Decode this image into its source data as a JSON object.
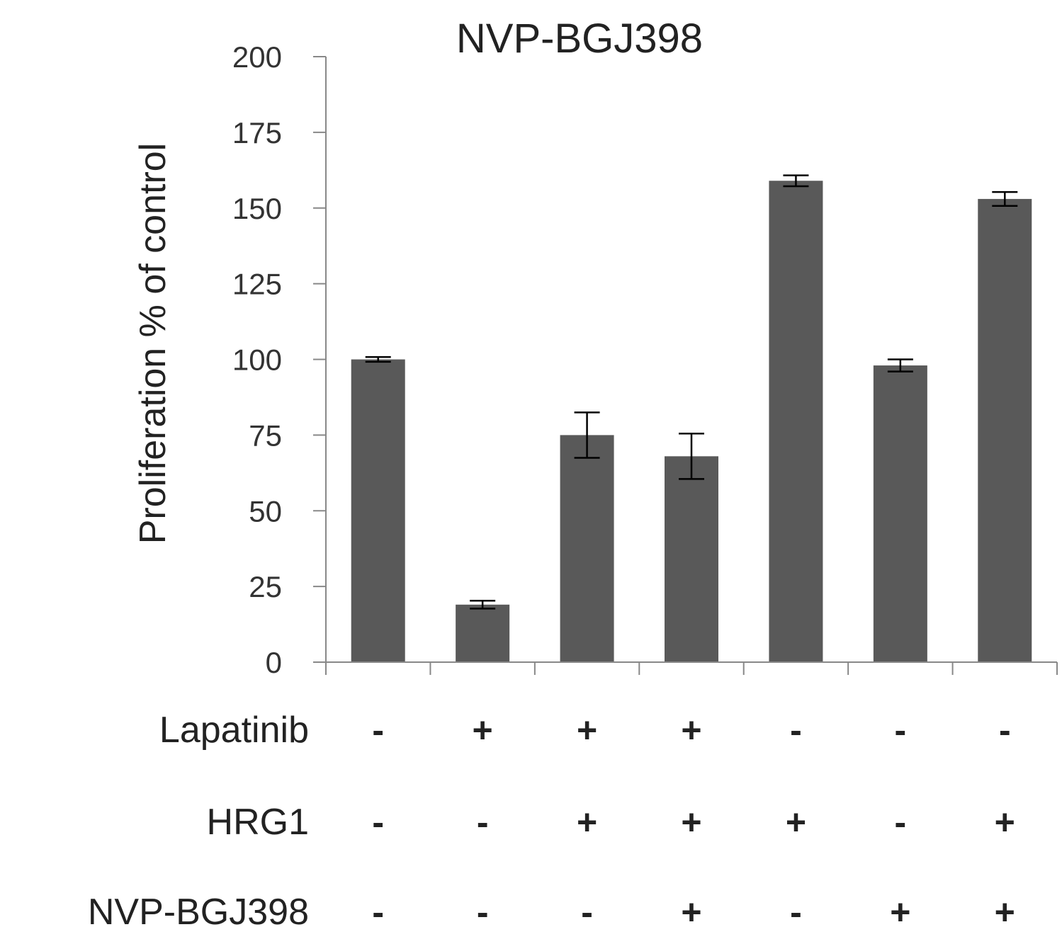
{
  "chart_data": {
    "type": "bar",
    "title": "NVP-BGJ398",
    "ylabel": "Proliferation % of control",
    "xlabel": "",
    "ylim": [
      0,
      200
    ],
    "yticks": [
      "0",
      "25",
      "50",
      "75",
      "100",
      "125",
      "150",
      "175",
      "200"
    ],
    "bar_color": "#595959",
    "grid": false,
    "legend": "none",
    "values": [
      100,
      19,
      75,
      68,
      159,
      98,
      153
    ],
    "errors": [
      0.8,
      1.3,
      7.5,
      7.5,
      1.8,
      2.0,
      2.3
    ],
    "conditions": [
      {
        "label": "Lapatinib",
        "signs": [
          "-",
          "+",
          "+",
          "+",
          "-",
          "-",
          "-"
        ]
      },
      {
        "label": "HRG1",
        "signs": [
          "-",
          "-",
          "+",
          "+",
          "+",
          "-",
          "+"
        ]
      },
      {
        "label": "NVP-BGJ398",
        "signs": [
          "-",
          "-",
          "-",
          "+",
          "-",
          "+",
          "+"
        ]
      }
    ]
  }
}
